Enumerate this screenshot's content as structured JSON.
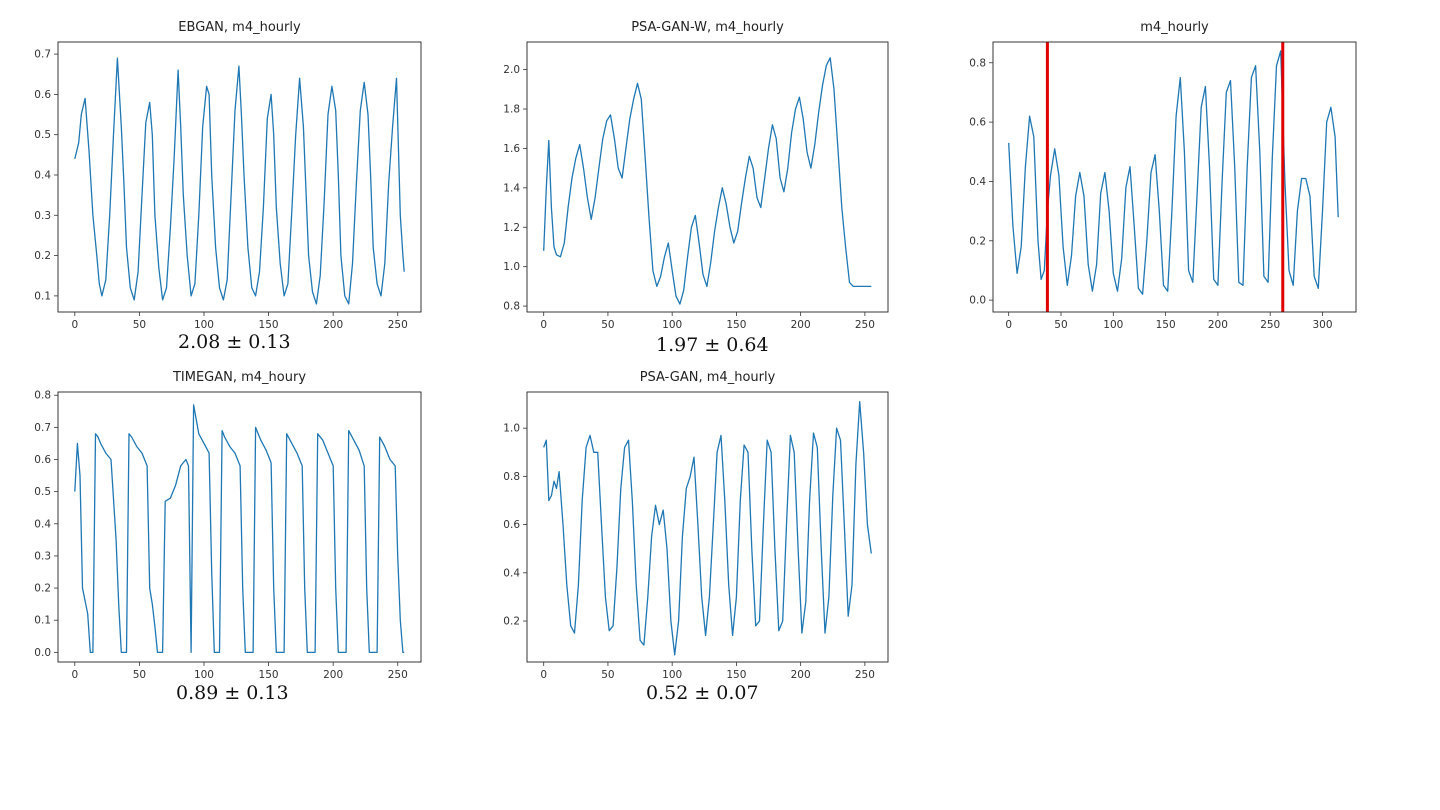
{
  "chart_data": [
    {
      "type": "line",
      "title": "EBGAN, m4_hourly",
      "xlim": [
        -13,
        268
      ],
      "ylim": [
        0.06,
        0.73
      ],
      "xticks": [
        0,
        50,
        100,
        150,
        200,
        250
      ],
      "yticks": [
        0.1,
        0.2,
        0.3,
        0.4,
        0.5,
        0.6,
        0.7
      ],
      "y_tick_decimals": 1,
      "score": "2.08 ± 0.13",
      "series": [
        {
          "x": [
            0,
            3,
            5,
            8,
            11,
            14,
            17,
            19,
            21,
            24,
            27,
            30,
            33,
            36,
            38,
            40,
            43,
            46,
            49,
            52,
            55,
            58,
            60,
            62,
            65,
            68,
            71,
            74,
            77,
            80,
            82,
            84,
            87,
            90,
            93,
            96,
            99,
            102,
            104,
            106,
            109,
            112,
            115,
            118,
            121,
            124,
            127,
            129,
            131,
            134,
            137,
            140,
            143,
            146,
            149,
            152,
            154,
            156,
            159,
            162,
            165,
            168,
            171,
            174,
            177,
            179,
            181,
            184,
            187,
            190,
            193,
            196,
            199,
            202,
            204,
            206,
            209,
            212,
            215,
            218,
            221,
            224,
            227,
            229,
            231,
            234,
            237,
            240,
            243,
            246,
            249,
            252,
            254,
            255
          ],
          "y": [
            0.44,
            0.48,
            0.55,
            0.59,
            0.46,
            0.3,
            0.2,
            0.13,
            0.1,
            0.14,
            0.3,
            0.5,
            0.69,
            0.52,
            0.38,
            0.22,
            0.12,
            0.09,
            0.16,
            0.35,
            0.53,
            0.58,
            0.5,
            0.3,
            0.17,
            0.09,
            0.12,
            0.27,
            0.45,
            0.66,
            0.52,
            0.35,
            0.2,
            0.1,
            0.13,
            0.3,
            0.52,
            0.62,
            0.6,
            0.4,
            0.22,
            0.12,
            0.09,
            0.14,
            0.35,
            0.56,
            0.67,
            0.55,
            0.4,
            0.22,
            0.12,
            0.1,
            0.16,
            0.32,
            0.54,
            0.6,
            0.5,
            0.32,
            0.18,
            0.1,
            0.13,
            0.31,
            0.5,
            0.64,
            0.52,
            0.36,
            0.2,
            0.11,
            0.08,
            0.15,
            0.33,
            0.55,
            0.62,
            0.56,
            0.4,
            0.2,
            0.1,
            0.08,
            0.18,
            0.38,
            0.56,
            0.63,
            0.55,
            0.4,
            0.22,
            0.13,
            0.1,
            0.18,
            0.38,
            0.52,
            0.64,
            0.3,
            0.2,
            0.16
          ]
        }
      ]
    },
    {
      "type": "line",
      "title": "PSA-GAN-W, m4_hourly",
      "xlim": [
        -13,
        268
      ],
      "ylim": [
        0.77,
        2.14
      ],
      "xticks": [
        0,
        50,
        100,
        150,
        200,
        250
      ],
      "yticks": [
        0.8,
        1.0,
        1.2,
        1.4,
        1.6,
        1.8,
        2.0
      ],
      "y_tick_decimals": 1,
      "score": "1.97 ± 0.64",
      "series": [
        {
          "x": [
            0,
            2,
            4,
            6,
            8,
            10,
            13,
            16,
            19,
            22,
            25,
            28,
            31,
            34,
            37,
            40,
            43,
            46,
            49,
            52,
            55,
            58,
            61,
            64,
            67,
            70,
            73,
            76,
            79,
            82,
            85,
            88,
            91,
            94,
            97,
            100,
            103,
            106,
            109,
            112,
            115,
            118,
            121,
            124,
            127,
            130,
            133,
            136,
            139,
            142,
            145,
            148,
            151,
            154,
            157,
            160,
            163,
            166,
            169,
            172,
            175,
            178,
            181,
            184,
            187,
            190,
            193,
            196,
            199,
            202,
            205,
            208,
            211,
            214,
            217,
            220,
            223,
            226,
            229,
            232,
            235,
            238,
            241,
            244,
            247,
            250,
            253,
            255
          ],
          "y": [
            1.08,
            1.4,
            1.64,
            1.3,
            1.1,
            1.06,
            1.05,
            1.12,
            1.3,
            1.45,
            1.55,
            1.62,
            1.5,
            1.35,
            1.24,
            1.35,
            1.5,
            1.65,
            1.74,
            1.77,
            1.65,
            1.5,
            1.45,
            1.6,
            1.75,
            1.85,
            1.93,
            1.85,
            1.55,
            1.25,
            0.98,
            0.9,
            0.95,
            1.05,
            1.12,
            0.98,
            0.85,
            0.81,
            0.88,
            1.05,
            1.2,
            1.26,
            1.12,
            0.96,
            0.9,
            1.02,
            1.18,
            1.3,
            1.4,
            1.32,
            1.2,
            1.12,
            1.18,
            1.32,
            1.45,
            1.56,
            1.5,
            1.35,
            1.3,
            1.45,
            1.6,
            1.72,
            1.65,
            1.45,
            1.38,
            1.5,
            1.68,
            1.8,
            1.86,
            1.75,
            1.58,
            1.5,
            1.62,
            1.78,
            1.92,
            2.02,
            2.06,
            1.9,
            1.6,
            1.3,
            1.1,
            0.92,
            0.9,
            0.9,
            0.9,
            0.9,
            0.9,
            0.9
          ]
        }
      ]
    },
    {
      "type": "line",
      "title": "m4_hourly",
      "xlim": [
        -15,
        332
      ],
      "ylim": [
        -0.04,
        0.87
      ],
      "xticks": [
        0,
        50,
        100,
        150,
        200,
        250,
        300
      ],
      "yticks": [
        0.0,
        0.2,
        0.4,
        0.6,
        0.8
      ],
      "y_tick_decimals": 1,
      "vlines_x": [
        37,
        262
      ],
      "series": [
        {
          "x": [
            0,
            4,
            8,
            12,
            16,
            20,
            24,
            28,
            31,
            34,
            37,
            40,
            44,
            48,
            52,
            56,
            60,
            64,
            68,
            72,
            76,
            80,
            84,
            88,
            92,
            96,
            100,
            104,
            108,
            112,
            116,
            120,
            124,
            128,
            132,
            136,
            140,
            144,
            148,
            152,
            156,
            160,
            164,
            168,
            172,
            176,
            180,
            184,
            188,
            192,
            196,
            200,
            204,
            208,
            212,
            216,
            220,
            224,
            228,
            232,
            236,
            240,
            244,
            248,
            252,
            256,
            260,
            264,
            268,
            272,
            276,
            280,
            284,
            288,
            292,
            296,
            300,
            304,
            308,
            312,
            315
          ],
          "y": [
            0.53,
            0.25,
            0.09,
            0.18,
            0.45,
            0.62,
            0.55,
            0.2,
            0.07,
            0.1,
            0.3,
            0.42,
            0.51,
            0.42,
            0.18,
            0.05,
            0.15,
            0.35,
            0.43,
            0.35,
            0.12,
            0.03,
            0.12,
            0.36,
            0.43,
            0.3,
            0.09,
            0.03,
            0.14,
            0.38,
            0.45,
            0.25,
            0.04,
            0.02,
            0.2,
            0.43,
            0.49,
            0.3,
            0.05,
            0.03,
            0.3,
            0.62,
            0.75,
            0.5,
            0.1,
            0.06,
            0.35,
            0.65,
            0.72,
            0.45,
            0.07,
            0.05,
            0.4,
            0.7,
            0.74,
            0.45,
            0.06,
            0.05,
            0.45,
            0.75,
            0.79,
            0.5,
            0.08,
            0.06,
            0.48,
            0.79,
            0.84,
            0.4,
            0.1,
            0.05,
            0.3,
            0.41,
            0.41,
            0.35,
            0.08,
            0.04,
            0.3,
            0.6,
            0.65,
            0.55,
            0.28
          ]
        }
      ]
    },
    {
      "type": "line",
      "title": "TIMEGAN, m4_houry",
      "xlim": [
        -13,
        268
      ],
      "ylim": [
        -0.03,
        0.81
      ],
      "xticks": [
        0,
        50,
        100,
        150,
        200,
        250
      ],
      "yticks": [
        0.0,
        0.1,
        0.2,
        0.3,
        0.4,
        0.5,
        0.6,
        0.7,
        0.8
      ],
      "y_tick_decimals": 1,
      "score": "0.89 ± 0.13",
      "series": [
        {
          "x": [
            0,
            2,
            4,
            6,
            8,
            10,
            12,
            14,
            16,
            18,
            20,
            24,
            28,
            32,
            34,
            36,
            38,
            40,
            42,
            44,
            48,
            52,
            56,
            58,
            60,
            62,
            64,
            66,
            68,
            70,
            74,
            78,
            82,
            86,
            88,
            90,
            92,
            96,
            100,
            104,
            106,
            108,
            110,
            112,
            114,
            116,
            120,
            124,
            128,
            130,
            132,
            134,
            136,
            138,
            140,
            144,
            148,
            152,
            154,
            156,
            158,
            160,
            162,
            164,
            168,
            172,
            176,
            178,
            180,
            182,
            184,
            186,
            188,
            192,
            196,
            200,
            202,
            204,
            206,
            208,
            210,
            212,
            216,
            220,
            224,
            226,
            228,
            230,
            232,
            234,
            236,
            240,
            244,
            248,
            250,
            252,
            254,
            255
          ],
          "y": [
            0.5,
            0.65,
            0.55,
            0.2,
            0.16,
            0.12,
            0.0,
            0.0,
            0.68,
            0.67,
            0.65,
            0.62,
            0.6,
            0.35,
            0.15,
            0.0,
            0.0,
            0.0,
            0.68,
            0.67,
            0.64,
            0.62,
            0.58,
            0.2,
            0.15,
            0.08,
            0.0,
            0.0,
            0.0,
            0.47,
            0.48,
            0.52,
            0.58,
            0.6,
            0.58,
            0.0,
            0.77,
            0.68,
            0.65,
            0.62,
            0.25,
            0.0,
            0.0,
            0.0,
            0.69,
            0.67,
            0.64,
            0.62,
            0.58,
            0.2,
            0.0,
            0.0,
            0.0,
            0.0,
            0.7,
            0.66,
            0.63,
            0.59,
            0.2,
            0.0,
            0.0,
            0.0,
            0.0,
            0.68,
            0.65,
            0.62,
            0.58,
            0.2,
            0.0,
            0.0,
            0.0,
            0.0,
            0.68,
            0.66,
            0.62,
            0.58,
            0.2,
            0.0,
            0.0,
            0.0,
            0.0,
            0.69,
            0.66,
            0.63,
            0.58,
            0.2,
            0.0,
            0.0,
            0.0,
            0.0,
            0.67,
            0.64,
            0.6,
            0.58,
            0.3,
            0.1,
            0.0,
            0.0
          ]
        }
      ]
    },
    {
      "type": "line",
      "title": "PSA-GAN, m4_hourly",
      "xlim": [
        -13,
        268
      ],
      "ylim": [
        0.03,
        1.15
      ],
      "xticks": [
        0,
        50,
        100,
        150,
        200,
        250
      ],
      "yticks": [
        0.2,
        0.4,
        0.6,
        0.8,
        1.0
      ],
      "y_tick_decimals": 1,
      "score": "0.52 ± 0.07",
      "series": [
        {
          "x": [
            0,
            2,
            4,
            6,
            8,
            10,
            12,
            15,
            18,
            21,
            24,
            27,
            30,
            33,
            36,
            39,
            42,
            45,
            48,
            51,
            54,
            57,
            60,
            63,
            66,
            69,
            72,
            75,
            78,
            81,
            84,
            87,
            90,
            93,
            96,
            99,
            102,
            105,
            108,
            111,
            114,
            117,
            120,
            123,
            126,
            129,
            132,
            135,
            138,
            141,
            144,
            147,
            150,
            153,
            156,
            159,
            162,
            165,
            168,
            171,
            174,
            177,
            180,
            183,
            186,
            189,
            192,
            195,
            198,
            201,
            204,
            207,
            210,
            213,
            216,
            219,
            222,
            225,
            228,
            231,
            234,
            237,
            240,
            243,
            246,
            249,
            252,
            255
          ],
          "y": [
            0.92,
            0.95,
            0.7,
            0.72,
            0.78,
            0.75,
            0.82,
            0.6,
            0.35,
            0.18,
            0.15,
            0.35,
            0.7,
            0.92,
            0.97,
            0.9,
            0.9,
            0.6,
            0.3,
            0.16,
            0.18,
            0.42,
            0.75,
            0.92,
            0.95,
            0.7,
            0.35,
            0.12,
            0.1,
            0.3,
            0.55,
            0.68,
            0.6,
            0.66,
            0.5,
            0.2,
            0.06,
            0.2,
            0.55,
            0.75,
            0.8,
            0.88,
            0.6,
            0.3,
            0.14,
            0.3,
            0.6,
            0.9,
            0.97,
            0.7,
            0.35,
            0.14,
            0.3,
            0.7,
            0.93,
            0.9,
            0.5,
            0.18,
            0.2,
            0.6,
            0.95,
            0.9,
            0.5,
            0.16,
            0.2,
            0.6,
            0.97,
            0.9,
            0.5,
            0.15,
            0.28,
            0.7,
            0.98,
            0.92,
            0.5,
            0.15,
            0.3,
            0.72,
            1.0,
            0.95,
            0.6,
            0.22,
            0.35,
            0.85,
            1.11,
            0.9,
            0.6,
            0.48
          ]
        }
      ]
    }
  ]
}
